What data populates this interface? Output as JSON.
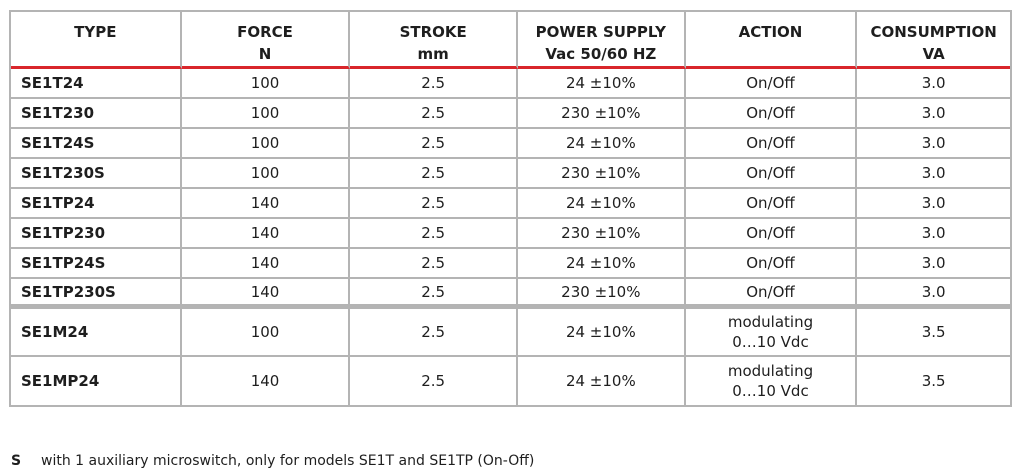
{
  "headers": [
    {
      "lines": [
        "TYPE"
      ]
    },
    {
      "lines": [
        "FORCE",
        "N"
      ]
    },
    {
      "lines": [
        "STROKE",
        "mm"
      ]
    },
    {
      "lines": [
        "POWER SUPPLY",
        "Vac 50/60 HZ"
      ]
    },
    {
      "lines": [
        "ACTION"
      ]
    },
    {
      "lines": [
        "CONSUMPTION",
        "VA"
      ]
    }
  ],
  "rows": [
    {
      "type": "SE1T24",
      "force": "100",
      "stroke": "2.5",
      "power": "24 ±10%",
      "action": [
        "On/Off"
      ],
      "consumption": "3.0"
    },
    {
      "type": "SE1T230",
      "force": "100",
      "stroke": "2.5",
      "power": "230 ±10%",
      "action": [
        "On/Off"
      ],
      "consumption": "3.0"
    },
    {
      "type": "SE1T24S",
      "force": "100",
      "stroke": "2.5",
      "power": "24 ±10%",
      "action": [
        "On/Off"
      ],
      "consumption": "3.0"
    },
    {
      "type": "SE1T230S",
      "force": "100",
      "stroke": "2.5",
      "power": "230 ±10%",
      "action": [
        "On/Off"
      ],
      "consumption": "3.0"
    },
    {
      "type": "SE1TP24",
      "force": "140",
      "stroke": "2.5",
      "power": "24 ±10%",
      "action": [
        "On/Off"
      ],
      "consumption": "3.0"
    },
    {
      "type": "SE1TP230",
      "force": "140",
      "stroke": "2.5",
      "power": "230 ±10%",
      "action": [
        "On/Off"
      ],
      "consumption": "3.0"
    },
    {
      "type": "SE1TP24S",
      "force": "140",
      "stroke": "2.5",
      "power": "24 ±10%",
      "action": [
        "On/Off"
      ],
      "consumption": "3.0"
    },
    {
      "type": "SE1TP230S",
      "force": "140",
      "stroke": "2.5",
      "power": "230 ±10%",
      "action": [
        "On/Off"
      ],
      "consumption": "3.0"
    },
    {
      "type": "SE1M24",
      "force": "100",
      "stroke": "2.5",
      "power": "24 ±10%",
      "action": [
        "modulating",
        "0…10 Vdc"
      ],
      "consumption": "3.5"
    },
    {
      "type": "SE1MP24",
      "force": "140",
      "stroke": "2.5",
      "power": "24 ±10%",
      "action": [
        "modulating",
        "0…10 Vdc"
      ],
      "consumption": "3.5"
    }
  ],
  "footnote": {
    "mark": "S",
    "text": "with 1 auxiliary microswitch, only for models SE1T and SE1TP (On-Off)"
  },
  "colors": {
    "header_rule": "#d9262b",
    "grid": "#b4b4b4"
  }
}
